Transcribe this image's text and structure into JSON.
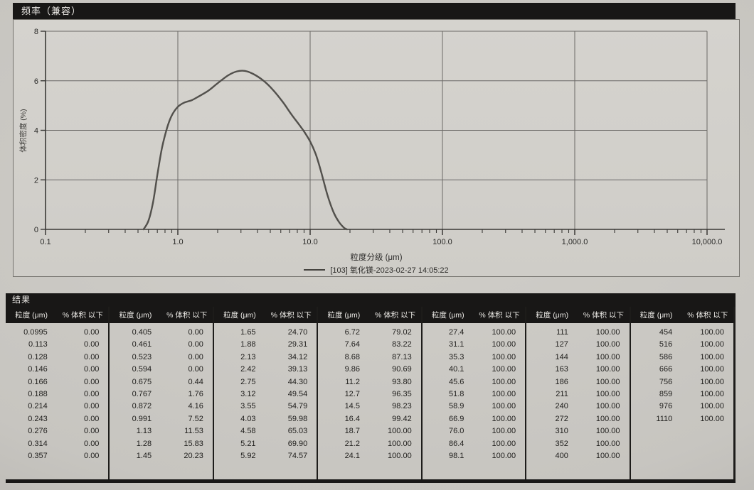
{
  "title": "频率（兼容）",
  "colors": {
    "paper": "#c7c5c0",
    "panel": "#d2d0cb",
    "header_bar": "#181716",
    "curve": "#52504c",
    "grid": "#6b6966",
    "axis": "#3a3936",
    "text": "#1f1e1c"
  },
  "chart_data": [
    {
      "type": "line",
      "title": "频率（兼容）",
      "xlabel": "粒度分级 (μm)",
      "ylabel": "体积密度 (%)",
      "x_scale": "log",
      "xlim": [
        0.1,
        10000
      ],
      "ylim": [
        0,
        8
      ],
      "y_ticks": [
        0,
        2,
        4,
        6,
        8
      ],
      "y_tick_labels": [
        "0",
        "2",
        "4",
        "6",
        "8"
      ],
      "x_major_ticks": [
        0.1,
        1,
        10,
        100,
        1000,
        10000
      ],
      "x_tick_labels": [
        "0.1",
        "1.0",
        "10.0",
        "100.0",
        "1,000.0",
        "10,000.0"
      ],
      "grid": true,
      "legend_position": "bottom-center",
      "series": [
        {
          "name": "[103] 氧化镁-2023-02-27 14:05:22",
          "points": [
            [
              0.55,
              0
            ],
            [
              0.6,
              0.35
            ],
            [
              0.65,
              1.1
            ],
            [
              0.7,
              2.2
            ],
            [
              0.76,
              3.3
            ],
            [
              0.83,
              4.1
            ],
            [
              0.9,
              4.6
            ],
            [
              1.0,
              4.95
            ],
            [
              1.12,
              5.12
            ],
            [
              1.28,
              5.22
            ],
            [
              1.45,
              5.38
            ],
            [
              1.7,
              5.6
            ],
            [
              2.0,
              5.9
            ],
            [
              2.4,
              6.22
            ],
            [
              2.8,
              6.38
            ],
            [
              3.2,
              6.4
            ],
            [
              3.7,
              6.28
            ],
            [
              4.4,
              6.02
            ],
            [
              5.2,
              5.65
            ],
            [
              6.2,
              5.15
            ],
            [
              7.2,
              4.65
            ],
            [
              8.2,
              4.25
            ],
            [
              9.0,
              3.95
            ],
            [
              10.0,
              3.55
            ],
            [
              11.0,
              3.05
            ],
            [
              12.0,
              2.4
            ],
            [
              13.5,
              1.4
            ],
            [
              15.0,
              0.7
            ],
            [
              16.5,
              0.3
            ],
            [
              18.0,
              0.07
            ],
            [
              19.0,
              0
            ]
          ]
        }
      ]
    },
    {
      "type": "table",
      "title": "结果",
      "size_header": "粒度 (μm)",
      "cumulative_header": "% 体积 以下",
      "column_groups": [
        [
          [
            "0.0995",
            "0.00"
          ],
          [
            "0.113",
            "0.00"
          ],
          [
            "0.128",
            "0.00"
          ],
          [
            "0.146",
            "0.00"
          ],
          [
            "0.166",
            "0.00"
          ],
          [
            "0.188",
            "0.00"
          ],
          [
            "0.214",
            "0.00"
          ],
          [
            "0.243",
            "0.00"
          ],
          [
            "0.276",
            "0.00"
          ],
          [
            "0.314",
            "0.00"
          ],
          [
            "0.357",
            "0.00"
          ]
        ],
        [
          [
            "0.405",
            "0.00"
          ],
          [
            "0.461",
            "0.00"
          ],
          [
            "0.523",
            "0.00"
          ],
          [
            "0.594",
            "0.00"
          ],
          [
            "0.675",
            "0.44"
          ],
          [
            "0.767",
            "1.76"
          ],
          [
            "0.872",
            "4.16"
          ],
          [
            "0.991",
            "7.52"
          ],
          [
            "1.13",
            "11.53"
          ],
          [
            "1.28",
            "15.83"
          ],
          [
            "1.45",
            "20.23"
          ]
        ],
        [
          [
            "1.65",
            "24.70"
          ],
          [
            "1.88",
            "29.31"
          ],
          [
            "2.13",
            "34.12"
          ],
          [
            "2.42",
            "39.13"
          ],
          [
            "2.75",
            "44.30"
          ],
          [
            "3.12",
            "49.54"
          ],
          [
            "3.55",
            "54.79"
          ],
          [
            "4.03",
            "59.98"
          ],
          [
            "4.58",
            "65.03"
          ],
          [
            "5.21",
            "69.90"
          ],
          [
            "5.92",
            "74.57"
          ]
        ],
        [
          [
            "6.72",
            "79.02"
          ],
          [
            "7.64",
            "83.22"
          ],
          [
            "8.68",
            "87.13"
          ],
          [
            "9.86",
            "90.69"
          ],
          [
            "11.2",
            "93.80"
          ],
          [
            "12.7",
            "96.35"
          ],
          [
            "14.5",
            "98.23"
          ],
          [
            "16.4",
            "99.42"
          ],
          [
            "18.7",
            "100.00"
          ],
          [
            "21.2",
            "100.00"
          ],
          [
            "24.1",
            "100.00"
          ]
        ],
        [
          [
            "27.4",
            "100.00"
          ],
          [
            "31.1",
            "100.00"
          ],
          [
            "35.3",
            "100.00"
          ],
          [
            "40.1",
            "100.00"
          ],
          [
            "45.6",
            "100.00"
          ],
          [
            "51.8",
            "100.00"
          ],
          [
            "58.9",
            "100.00"
          ],
          [
            "66.9",
            "100.00"
          ],
          [
            "76.0",
            "100.00"
          ],
          [
            "86.4",
            "100.00"
          ],
          [
            "98.1",
            "100.00"
          ]
        ],
        [
          [
            "111",
            "100.00"
          ],
          [
            "127",
            "100.00"
          ],
          [
            "144",
            "100.00"
          ],
          [
            "163",
            "100.00"
          ],
          [
            "186",
            "100.00"
          ],
          [
            "211",
            "100.00"
          ],
          [
            "240",
            "100.00"
          ],
          [
            "272",
            "100.00"
          ],
          [
            "310",
            "100.00"
          ],
          [
            "352",
            "100.00"
          ],
          [
            "400",
            "100.00"
          ]
        ],
        [
          [
            "454",
            "100.00"
          ],
          [
            "516",
            "100.00"
          ],
          [
            "586",
            "100.00"
          ],
          [
            "666",
            "100.00"
          ],
          [
            "756",
            "100.00"
          ],
          [
            "859",
            "100.00"
          ],
          [
            "976",
            "100.00"
          ],
          [
            "1110",
            "100.00"
          ]
        ]
      ]
    }
  ]
}
